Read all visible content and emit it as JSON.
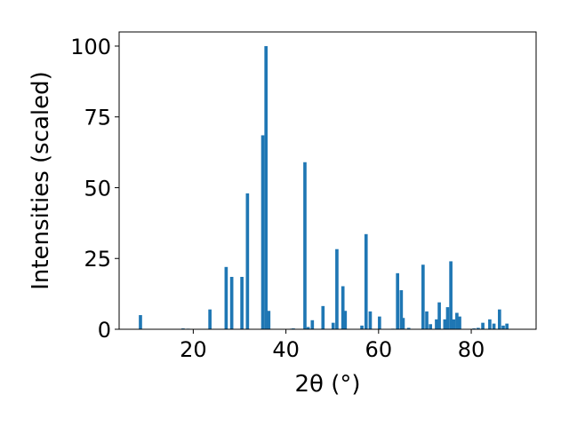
{
  "chart_data": {
    "type": "bar",
    "xlabel": "2θ (°)",
    "ylabel": "Intensities (scaled)",
    "xlim": [
      4,
      94
    ],
    "ylim": [
      0,
      105
    ],
    "xticks": [
      20,
      40,
      60,
      80
    ],
    "yticks": [
      0,
      25,
      50,
      75,
      100
    ],
    "bar_width": 0.7,
    "color": "#1f77b4",
    "x": [
      8.6,
      17.8,
      18.9,
      23.6,
      27.1,
      28.3,
      30.5,
      31.7,
      35.0,
      35.7,
      36.3,
      41.2,
      41.6,
      44.1,
      44.8,
      45.7,
      48.0,
      50.2,
      51.0,
      52.3,
      52.8,
      56.4,
      57.3,
      58.2,
      60.2,
      63.1,
      64.1,
      64.9,
      65.3,
      66.5,
      69.6,
      70.4,
      71.2,
      72.5,
      73.1,
      74.3,
      74.9,
      75.6,
      76.2,
      76.9,
      77.5,
      80.6,
      81.5,
      82.5,
      84.0,
      84.9,
      86.1,
      86.9,
      87.7
    ],
    "values": [
      5.0,
      0.3,
      0.2,
      7.0,
      22.0,
      18.5,
      18.5,
      48.0,
      68.5,
      100.0,
      6.5,
      0.2,
      0.3,
      59.0,
      0.8,
      3.2,
      8.2,
      2.3,
      28.3,
      15.2,
      6.5,
      1.3,
      33.6,
      6.3,
      4.5,
      0.2,
      19.8,
      13.8,
      4.0,
      0.5,
      22.8,
      6.3,
      1.8,
      3.5,
      9.5,
      3.5,
      7.8,
      24.0,
      3.5,
      5.8,
      4.5,
      0.3,
      0.5,
      2.3,
      3.5,
      2.0,
      7.0,
      1.3,
      2.0
    ]
  }
}
